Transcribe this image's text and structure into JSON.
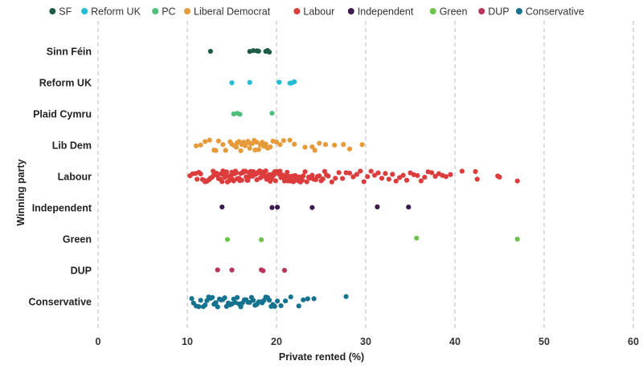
{
  "chart_data": {
    "type": "scatter",
    "title": "",
    "xlabel": "Private rented (%)",
    "ylabel": "Winning party",
    "xlim": [
      0,
      60
    ],
    "xticks": [
      0,
      10,
      20,
      30,
      40,
      50,
      60
    ],
    "grid": "vertical dashed",
    "legend_position": "top",
    "legend": [
      {
        "name": "SF",
        "color": "#1f5c46"
      },
      {
        "name": "Reform UK",
        "color": "#22bcd4"
      },
      {
        "name": "PC",
        "color": "#4fbf7a"
      },
      {
        "name": "Liberal Democrat",
        "color": "#e69a3a"
      },
      {
        "name": "Labour",
        "color": "#dc3c3c"
      },
      {
        "name": "Independent",
        "color": "#3d1a4f"
      },
      {
        "name": "Green",
        "color": "#6cc24a"
      },
      {
        "name": "DUP",
        "color": "#b8365a"
      },
      {
        "name": "Conservative",
        "color": "#15738f"
      }
    ],
    "categories": [
      "Sinn Féin",
      "Reform UK",
      "Plaid Cymru",
      "Lib Dem",
      "Labour",
      "Independent",
      "Green",
      "DUP",
      "Conservative"
    ],
    "series": [
      {
        "category": "Sinn Féin",
        "color": "#1f5c46",
        "values": [
          12.6,
          17.0,
          17.4,
          17.8,
          18.0,
          18.8,
          19.0,
          19.2
        ]
      },
      {
        "category": "Reform UK",
        "color": "#22bcd4",
        "values": [
          15.0,
          17.0,
          20.3,
          21.5,
          21.7,
          22.0
        ]
      },
      {
        "category": "Plaid Cymru",
        "color": "#4fbf7a",
        "values": [
          15.2,
          15.6,
          15.9,
          19.5
        ]
      },
      {
        "category": "Lib Dem",
        "color": "#e69a3a",
        "values": [
          11.0,
          11.5,
          12.0,
          12.5,
          13.0,
          13.2,
          13.5,
          14.0,
          14.3,
          14.8,
          15.0,
          15.3,
          15.5,
          15.6,
          15.8,
          16.0,
          16.1,
          16.3,
          16.5,
          16.6,
          16.8,
          17.0,
          17.1,
          17.3,
          17.5,
          17.6,
          17.8,
          18.0,
          18.2,
          18.4,
          18.6,
          18.8,
          19.0,
          19.3,
          19.6,
          20.0,
          20.4,
          20.8,
          21.5,
          22.0,
          23.2,
          24.0,
          24.3,
          24.8,
          25.5,
          26.5,
          27.5,
          28.2,
          29.6
        ]
      },
      {
        "category": "Labour",
        "color": "#dc3c3c",
        "values": [
          10.3,
          10.6,
          10.9,
          11.1,
          11.3,
          11.5,
          11.7,
          11.9,
          12.0,
          12.2,
          12.3,
          12.5,
          12.6,
          12.8,
          12.9,
          13.0,
          13.2,
          13.3,
          13.4,
          13.5,
          13.7,
          13.8,
          13.9,
          14.0,
          14.1,
          14.2,
          14.3,
          14.4,
          14.5,
          14.6,
          14.7,
          14.8,
          14.9,
          15.0,
          15.1,
          15.2,
          15.3,
          15.4,
          15.5,
          15.6,
          15.7,
          15.8,
          15.9,
          16.0,
          16.1,
          16.2,
          16.3,
          16.4,
          16.5,
          16.6,
          16.7,
          16.8,
          16.9,
          17.0,
          17.1,
          17.2,
          17.3,
          17.4,
          17.5,
          17.6,
          17.7,
          17.8,
          17.9,
          18.0,
          18.1,
          18.2,
          18.3,
          18.4,
          18.5,
          18.6,
          18.7,
          18.8,
          18.9,
          19.0,
          19.1,
          19.2,
          19.3,
          19.4,
          19.5,
          19.6,
          19.7,
          19.8,
          19.9,
          20.0,
          20.1,
          20.2,
          20.3,
          20.4,
          20.5,
          20.6,
          20.7,
          20.8,
          20.9,
          21.0,
          21.1,
          21.2,
          21.3,
          21.4,
          21.5,
          21.6,
          21.7,
          21.8,
          21.9,
          22.0,
          22.1,
          22.2,
          22.3,
          22.4,
          22.5,
          22.6,
          22.7,
          22.8,
          22.9,
          23.0,
          23.2,
          23.4,
          23.6,
          23.8,
          24.0,
          24.2,
          24.4,
          24.6,
          24.8,
          25.0,
          25.2,
          25.4,
          25.6,
          25.8,
          26.2,
          26.6,
          27.0,
          27.4,
          27.8,
          28.2,
          28.6,
          29.0,
          29.4,
          29.8,
          30.2,
          30.6,
          31.0,
          31.4,
          31.8,
          32.2,
          32.6,
          33.0,
          33.4,
          33.8,
          34.2,
          34.6,
          35.0,
          35.4,
          35.8,
          36.2,
          36.6,
          37.0,
          37.4,
          37.8,
          38.2,
          38.6,
          39.0,
          39.5,
          40.8,
          42.3,
          42.5,
          44.8,
          45.0,
          47.0
        ]
      },
      {
        "category": "Independent",
        "color": "#3d1a4f",
        "values": [
          13.9,
          19.5,
          20.1,
          24.0,
          31.3,
          34.8
        ]
      },
      {
        "category": "Green",
        "color": "#6cc24a",
        "values": [
          14.5,
          18.3,
          35.7,
          47.0
        ]
      },
      {
        "category": "DUP",
        "color": "#b8365a",
        "values": [
          13.4,
          15.0,
          18.3,
          18.5,
          20.9
        ]
      },
      {
        "category": "Conservative",
        "color": "#15738f",
        "values": [
          10.5,
          10.7,
          11.0,
          11.3,
          11.5,
          11.8,
          12.0,
          12.2,
          12.4,
          12.6,
          12.8,
          13.0,
          13.2,
          13.4,
          13.6,
          13.8,
          14.0,
          14.2,
          14.4,
          14.6,
          14.8,
          15.0,
          15.2,
          15.4,
          15.6,
          15.8,
          16.0,
          16.2,
          16.4,
          16.6,
          16.8,
          17.0,
          17.2,
          17.4,
          17.6,
          17.8,
          18.0,
          18.2,
          18.4,
          18.6,
          18.8,
          19.0,
          19.2,
          19.4,
          19.6,
          19.8,
          20.1,
          20.5,
          21.0,
          21.6,
          22.5,
          23.0,
          23.5,
          24.2,
          27.8
        ]
      }
    ]
  }
}
